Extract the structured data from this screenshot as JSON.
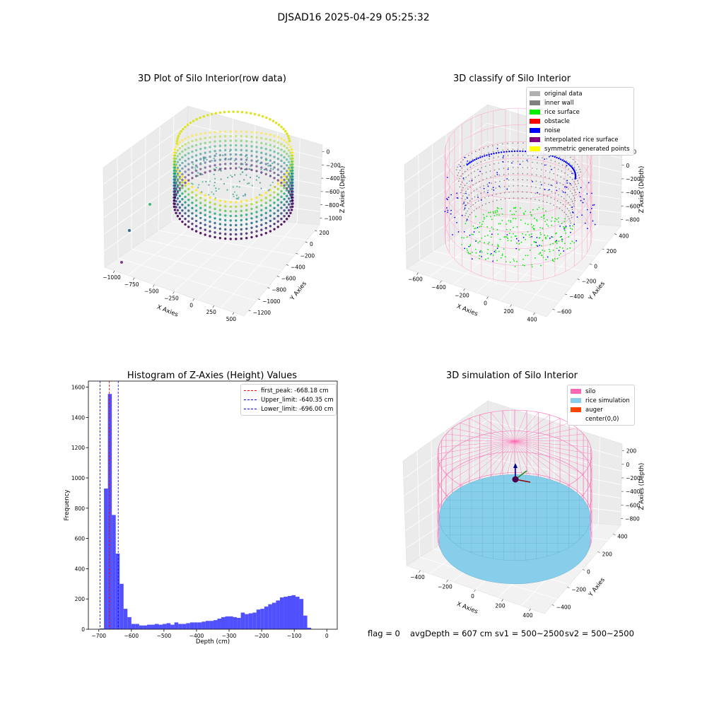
{
  "figure": {
    "suptitle": "DJSAD16 2025-04-29 05:25:32"
  },
  "footer": {
    "flag": "flag = 0",
    "avg_depth": "avgDepth = 607 cm",
    "sv1": "sv1 = 500~2500",
    "sv2": "sv2 = 500~2500"
  },
  "chart_data": [
    {
      "type": "scatter3d",
      "title": "3D Plot of Silo Interior(row data)",
      "xlabel": "X Axies",
      "ylabel": "Y Axies",
      "zlabel": "Z Axies (Depth)",
      "x_ticks": [
        "−1000",
        "−750",
        "−500",
        "−250",
        "0",
        "250",
        "500"
      ],
      "y_ticks": [
        "200",
        "0",
        "−200",
        "−400",
        "−600",
        "−800",
        "−1000",
        "−1200"
      ],
      "z_ticks": [
        "0",
        "−200",
        "−400",
        "−600",
        "−800",
        "−1000"
      ],
      "colormap": "viridis",
      "outlier_colors": [
        "#3fbc73",
        "#31688e",
        "#7b3f8f"
      ]
    },
    {
      "type": "scatter3d",
      "title": "3D classify of Silo Interior",
      "xlabel": "X Axies",
      "ylabel": "Y Axies",
      "zlabel": "Z Axies (Depth)",
      "x_ticks": [
        "−600",
        "−400",
        "−200",
        "0",
        "200",
        "400"
      ],
      "y_ticks": [
        "400",
        "200",
        "0",
        "−200",
        "−400",
        "−600"
      ],
      "z_ticks": [
        "200",
        "0",
        "−200",
        "−400",
        "−600",
        "−800"
      ],
      "legend_position": "top-right",
      "legend": [
        {
          "label": "original data",
          "color": "#b0b0b0"
        },
        {
          "label": "inner wall",
          "color": "#808080"
        },
        {
          "label": "rice surface",
          "color": "#00ee00"
        },
        {
          "label": "obstacle",
          "color": "#ff0000"
        },
        {
          "label": "noise",
          "color": "#0000ff"
        },
        {
          "label": "interpolated rice surface",
          "color": "#800080"
        },
        {
          "label": "symmetric generated points",
          "color": "#ffff00"
        }
      ],
      "wire_color": "#ff9ec8"
    },
    {
      "type": "bar",
      "title": "Histogram of Z-Axies (Height) Values",
      "xlabel": "Depth (cm)",
      "ylabel": "Frequency",
      "xlim": [
        -732,
        32
      ],
      "ylim": [
        0,
        1640
      ],
      "bin_width": 12,
      "x_ticks": [
        -700,
        -600,
        -500,
        -400,
        -300,
        -200,
        -100,
        0
      ],
      "x_tick_labels": [
        "−700",
        "−600",
        "−500",
        "−400",
        "−300",
        "−200",
        "−100",
        "0"
      ],
      "y_ticks": [
        0,
        200,
        400,
        600,
        800,
        1000,
        1200,
        1400,
        1600
      ],
      "bar_color": "#5050ff",
      "bins": [
        [
          -696,
          5
        ],
        [
          -684,
          930
        ],
        [
          -672,
          1555
        ],
        [
          -660,
          755
        ],
        [
          -648,
          500
        ],
        [
          -636,
          300
        ],
        [
          -624,
          135
        ],
        [
          -612,
          80
        ],
        [
          -600,
          35
        ],
        [
          -588,
          35
        ],
        [
          -576,
          25
        ],
        [
          -564,
          25
        ],
        [
          -552,
          30
        ],
        [
          -540,
          30
        ],
        [
          -528,
          35
        ],
        [
          -516,
          30
        ],
        [
          -504,
          35
        ],
        [
          -492,
          40
        ],
        [
          -480,
          30
        ],
        [
          -468,
          45
        ],
        [
          -456,
          35
        ],
        [
          -444,
          35
        ],
        [
          -432,
          40
        ],
        [
          -420,
          45
        ],
        [
          -408,
          45
        ],
        [
          -396,
          45
        ],
        [
          -384,
          50
        ],
        [
          -372,
          55
        ],
        [
          -360,
          55
        ],
        [
          -348,
          60
        ],
        [
          -336,
          70
        ],
        [
          -324,
          80
        ],
        [
          -312,
          85
        ],
        [
          -300,
          85
        ],
        [
          -288,
          80
        ],
        [
          -276,
          75
        ],
        [
          -264,
          110
        ],
        [
          -252,
          100
        ],
        [
          -240,
          105
        ],
        [
          -228,
          110
        ],
        [
          -216,
          130
        ],
        [
          -204,
          135
        ],
        [
          -192,
          150
        ],
        [
          -180,
          165
        ],
        [
          -168,
          175
        ],
        [
          -156,
          190
        ],
        [
          -144,
          210
        ],
        [
          -132,
          215
        ],
        [
          -120,
          220
        ],
        [
          -108,
          225
        ],
        [
          -96,
          215
        ],
        [
          -84,
          200
        ],
        [
          -72,
          90
        ],
        [
          -60,
          10
        ]
      ],
      "reference_lines": [
        {
          "name": "first_peak",
          "value": -668.18,
          "label": "first_peak: -668.18 cm",
          "color": "#ff0000"
        },
        {
          "name": "upper_limit",
          "value": -640.35,
          "label": "Upper_limit: -640.35 cm",
          "color": "#0000ff"
        },
        {
          "name": "lower_limit",
          "value": -696.0,
          "label": "Lower_limit: -696.00 cm",
          "color": "#0000ff"
        }
      ],
      "legend_position": "top-right"
    },
    {
      "type": "surface3d",
      "title": "3D simulation of Silo Interior",
      "xlabel": "X Axies",
      "ylabel": "Y Axies",
      "zlabel": "Z Axies (Depth)",
      "x_ticks": [
        "−400",
        "−200",
        "0",
        "200",
        "400"
      ],
      "y_ticks": [
        "400",
        "200",
        "0",
        "−200",
        "−400"
      ],
      "z_ticks": [
        "200",
        "0",
        "−200",
        "−400",
        "−600",
        "−800"
      ],
      "legend_position": "top-right",
      "legend": [
        {
          "label": "silo",
          "color": "#ff69b4"
        },
        {
          "label": "rice simulation",
          "color": "#87ceeb"
        },
        {
          "label": "auger",
          "color": "#ff4500"
        },
        {
          "label": "center(0,0)",
          "color": "#ffffff"
        }
      ],
      "silo_color": "#ff69b4",
      "rice_color": "#87ceeb"
    }
  ]
}
